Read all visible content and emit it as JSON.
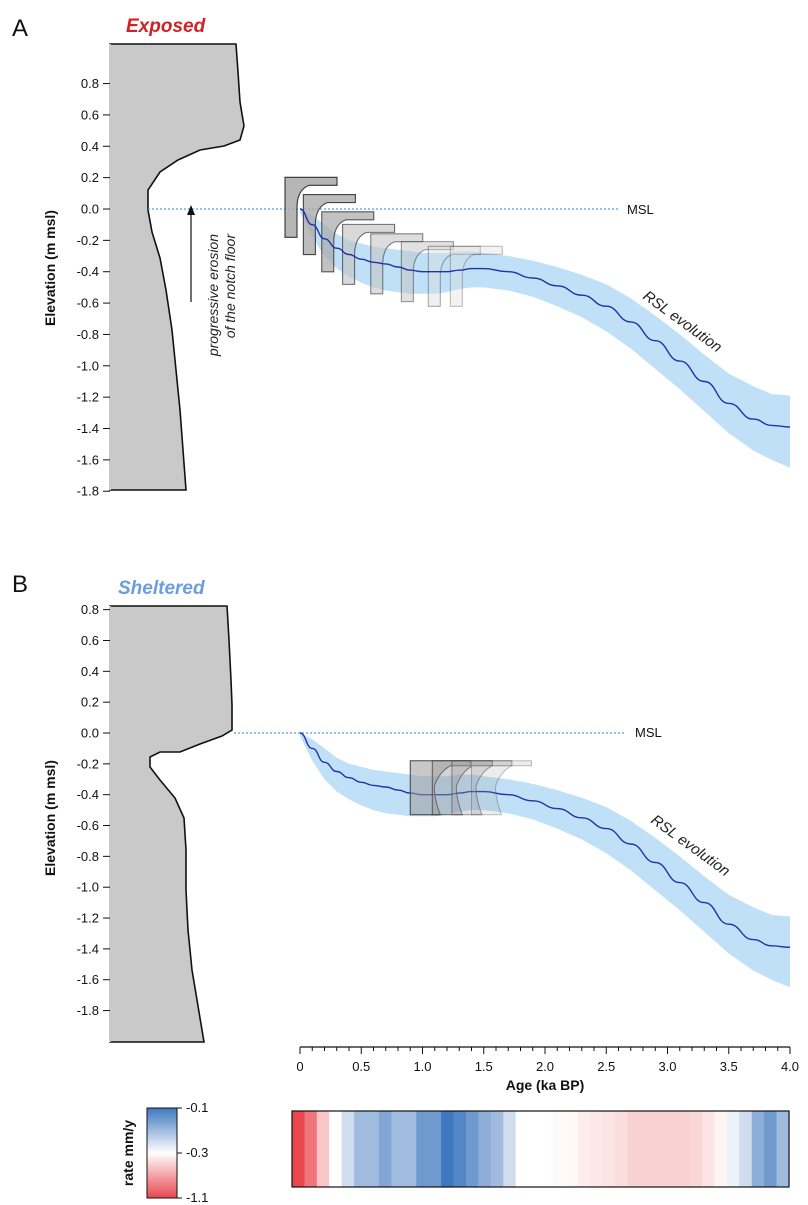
{
  "chart_data": [
    {
      "panel": "A",
      "type": "line",
      "condition": "Exposed",
      "condition_color": "#d41f26",
      "ylabel": "Elevation (m msl)",
      "ylim": [
        -1.8,
        1.0
      ],
      "yticks": [
        "0.8",
        "0.6",
        "0.4",
        "0.2",
        "0.0",
        "-0.2",
        "-0.4",
        "-0.6",
        "-0.8",
        "-1.0",
        "-1.2",
        "-1.4",
        "-1.6",
        "-1.8"
      ],
      "xlim": [
        0,
        4.0
      ],
      "msl_label": "MSL",
      "series": [
        {
          "name": "RSL evolution",
          "color": "#2630a8",
          "x": [
            0,
            0.1,
            0.2,
            0.3,
            0.4,
            0.5,
            0.6,
            0.7,
            0.8,
            0.9,
            1.0,
            1.1,
            1.2,
            1.3,
            1.4,
            1.5,
            1.7,
            1.9,
            2.1,
            2.3,
            2.5,
            2.7,
            2.9,
            3.1,
            3.3,
            3.5,
            3.7,
            3.85,
            4.0
          ],
          "y": [
            0.0,
            -0.1,
            -0.19,
            -0.25,
            -0.29,
            -0.32,
            -0.34,
            -0.35,
            -0.37,
            -0.39,
            -0.4,
            -0.4,
            -0.4,
            -0.39,
            -0.38,
            -0.38,
            -0.4,
            -0.44,
            -0.49,
            -0.55,
            -0.62,
            -0.72,
            -0.84,
            -0.97,
            -1.1,
            -1.24,
            -1.34,
            -1.38,
            -1.39
          ],
          "band_upper": [
            0.0,
            -0.04,
            -0.1,
            -0.16,
            -0.2,
            -0.22,
            -0.24,
            -0.25,
            -0.26,
            -0.27,
            -0.28,
            -0.28,
            -0.28,
            -0.27,
            -0.27,
            -0.28,
            -0.3,
            -0.33,
            -0.37,
            -0.42,
            -0.48,
            -0.57,
            -0.68,
            -0.8,
            -0.93,
            -1.05,
            -1.13,
            -1.18,
            -1.19
          ],
          "band_lower": [
            -0.02,
            -0.18,
            -0.3,
            -0.38,
            -0.43,
            -0.47,
            -0.5,
            -0.52,
            -0.53,
            -0.54,
            -0.54,
            -0.54,
            -0.53,
            -0.51,
            -0.5,
            -0.5,
            -0.52,
            -0.56,
            -0.62,
            -0.69,
            -0.78,
            -0.89,
            -1.02,
            -1.15,
            -1.29,
            -1.43,
            -1.54,
            -1.6,
            -1.65
          ]
        }
      ],
      "annotations": [
        "RSL evolution",
        "progressive erosion",
        "of the notch floor"
      ],
      "notch_profiles": 8
    },
    {
      "panel": "B",
      "type": "line",
      "condition": "Sheltered",
      "condition_color": "#6a9ee0",
      "ylabel": "Elevation (m msl)",
      "ylim": [
        -1.8,
        0.8
      ],
      "yticks": [
        "0.8",
        "0.6",
        "0.4",
        "0.2",
        "0.0",
        "-0.2",
        "-0.4",
        "-0.6",
        "-0.8",
        "-1.0",
        "-1.2",
        "-1.4",
        "-1.6",
        "-1.8"
      ],
      "xlabel": "Age (ka BP)",
      "xlim": [
        0,
        4.0
      ],
      "xticks": [
        "0",
        "0.5",
        "1.0",
        "1.5",
        "2.0",
        "2.5",
        "3.0",
        "3.5",
        "4.0"
      ],
      "msl_label": "MSL",
      "series": [
        {
          "name": "RSL evolution",
          "color": "#2630a8",
          "x": [
            0,
            0.1,
            0.2,
            0.3,
            0.4,
            0.5,
            0.6,
            0.7,
            0.8,
            0.9,
            1.0,
            1.1,
            1.2,
            1.3,
            1.4,
            1.5,
            1.7,
            1.9,
            2.1,
            2.3,
            2.5,
            2.7,
            2.9,
            3.1,
            3.3,
            3.5,
            3.7,
            3.85,
            4.0
          ],
          "y": [
            0.0,
            -0.1,
            -0.19,
            -0.25,
            -0.29,
            -0.32,
            -0.34,
            -0.35,
            -0.37,
            -0.39,
            -0.4,
            -0.4,
            -0.4,
            -0.39,
            -0.38,
            -0.38,
            -0.4,
            -0.44,
            -0.49,
            -0.55,
            -0.62,
            -0.72,
            -0.84,
            -0.97,
            -1.1,
            -1.24,
            -1.34,
            -1.38,
            -1.39
          ],
          "band_upper": [
            0.0,
            -0.04,
            -0.1,
            -0.16,
            -0.2,
            -0.22,
            -0.24,
            -0.25,
            -0.26,
            -0.27,
            -0.28,
            -0.28,
            -0.28,
            -0.27,
            -0.27,
            -0.28,
            -0.3,
            -0.33,
            -0.37,
            -0.42,
            -0.48,
            -0.57,
            -0.68,
            -0.8,
            -0.93,
            -1.05,
            -1.13,
            -1.18,
            -1.19
          ],
          "band_lower": [
            -0.02,
            -0.18,
            -0.3,
            -0.38,
            -0.43,
            -0.47,
            -0.5,
            -0.52,
            -0.53,
            -0.54,
            -0.54,
            -0.54,
            -0.53,
            -0.51,
            -0.5,
            -0.5,
            -0.52,
            -0.56,
            -0.62,
            -0.69,
            -0.78,
            -0.89,
            -1.02,
            -1.15,
            -1.29,
            -1.43,
            -1.54,
            -1.6,
            -1.65
          ]
        }
      ],
      "annotations": [
        "RSL evolution"
      ],
      "notch_profiles": 4
    },
    {
      "type": "heatmap",
      "colorbar": {
        "label": "rate mm/y",
        "ticks": [
          "-0.1",
          "-0.3",
          "-1.1"
        ],
        "colors": [
          "#3f78be",
          "#ffffff",
          "#e8474f"
        ]
      },
      "xlim": [
        0,
        4.0
      ],
      "rates": [
        -1.1,
        -0.9,
        -0.55,
        -0.3,
        -0.25,
        -0.2,
        -0.2,
        -0.17,
        -0.2,
        -0.2,
        -0.15,
        -0.15,
        -0.1,
        -0.12,
        -0.15,
        -0.18,
        -0.2,
        -0.25,
        -0.3,
        -0.3,
        -0.3,
        -0.32,
        -0.33,
        -0.38,
        -0.4,
        -0.42,
        -0.45,
        -0.5,
        -0.5,
        -0.5,
        -0.5,
        -0.5,
        -0.48,
        -0.42,
        -0.35,
        -0.28,
        -0.25,
        -0.18,
        -0.15,
        -0.2
      ]
    }
  ]
}
